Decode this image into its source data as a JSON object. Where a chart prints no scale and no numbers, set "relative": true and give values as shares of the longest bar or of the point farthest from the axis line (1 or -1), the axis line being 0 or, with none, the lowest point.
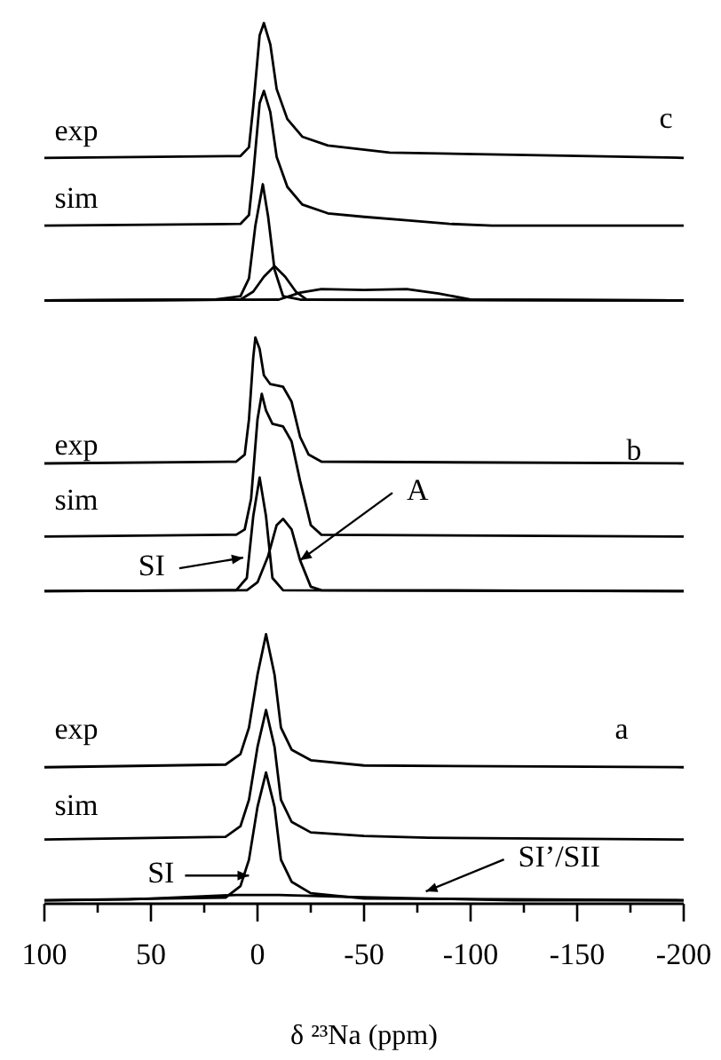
{
  "chart_data": {
    "type": "line",
    "relative": true,
    "xlabel": "δ ²³Na (ppm)",
    "xlim": [
      100,
      -200
    ],
    "xticks": [
      100,
      {
        "value": 75,
        "label": null
      },
      50,
      {
        "value": 25,
        "label": null
      },
      0,
      {
        "value": -25,
        "label": null
      },
      -50,
      {
        "value": -75,
        "label": null
      },
      -100,
      {
        "value": -125,
        "label": null
      },
      -150,
      {
        "value": -175,
        "label": null
      },
      -200
    ],
    "tick_labels": "x",
    "marker": "none",
    "line_style": "solid",
    "series": [
      {
        "color": "#000000",
        "x": [
          100,
          8,
          4,
          2,
          -1,
          -3,
          -6,
          -9,
          -14,
          -21,
          -33,
          -62,
          -200
        ],
        "values": [
          0.847,
          0.849,
          0.859,
          0.905,
          0.986,
          1.0,
          0.976,
          0.925,
          0.891,
          0.871,
          0.861,
          0.853,
          0.847
        ]
      },
      {
        "color": "#000000",
        "x": [
          100,
          8,
          4,
          2,
          -1,
          -3,
          -6,
          -9,
          -14,
          -21,
          -33,
          -50,
          -70,
          -90,
          -110,
          -200
        ],
        "values": [
          0.77,
          0.772,
          0.782,
          0.828,
          0.909,
          0.923,
          0.899,
          0.848,
          0.814,
          0.794,
          0.784,
          0.78,
          0.776,
          0.772,
          0.77,
          0.77
        ]
      },
      {
        "color": "#000000",
        "x": [
          100,
          20,
          8,
          4,
          1,
          -2.5,
          -5,
          -8,
          -12,
          -20,
          -200
        ],
        "values": [
          0.685,
          0.686,
          0.69,
          0.71,
          0.77,
          0.817,
          0.78,
          0.72,
          0.69,
          0.686,
          0.685
        ]
      },
      {
        "color": "#000000",
        "x": [
          100,
          8,
          2,
          -3,
          -8,
          -13,
          -18,
          -23,
          -200
        ],
        "values": [
          0.685,
          0.686,
          0.695,
          0.712,
          0.724,
          0.712,
          0.695,
          0.686,
          0.685
        ]
      },
      {
        "color": "#000000",
        "x": [
          100,
          -10,
          -20,
          -30,
          -50,
          -70,
          -85,
          -100,
          -200
        ],
        "values": [
          0.685,
          0.686,
          0.694,
          0.698,
          0.697,
          0.698,
          0.693,
          0.686,
          0.685
        ]
      },
      {
        "color": "#000000",
        "x": [
          100,
          10,
          6,
          4,
          2,
          1,
          -1,
          -3,
          -6,
          -12,
          -16,
          -20,
          -24,
          -30,
          -200
        ],
        "values": [
          0.5,
          0.502,
          0.51,
          0.55,
          0.62,
          0.643,
          0.63,
          0.6,
          0.59,
          0.587,
          0.57,
          0.53,
          0.51,
          0.502,
          0.5
        ]
      },
      {
        "color": "#000000",
        "x": [
          100,
          10,
          6,
          3,
          0,
          -2,
          -4,
          -7,
          -12,
          -16,
          -20,
          -25,
          -30,
          -200
        ],
        "values": [
          0.417,
          0.419,
          0.425,
          0.46,
          0.55,
          0.579,
          0.56,
          0.545,
          0.542,
          0.525,
          0.48,
          0.43,
          0.419,
          0.417
        ]
      },
      {
        "color": "#000000",
        "x": [
          100,
          10,
          5,
          2,
          -1,
          -4,
          -7,
          -12,
          -200
        ],
        "values": [
          0.355,
          0.356,
          0.37,
          0.44,
          0.484,
          0.44,
          0.37,
          0.356,
          0.355
        ]
      },
      {
        "color": "#000000",
        "x": [
          100,
          5,
          0,
          -5,
          -9,
          -12,
          -16,
          -20,
          -25,
          -30,
          -200
        ],
        "values": [
          0.355,
          0.356,
          0.365,
          0.395,
          0.43,
          0.437,
          0.425,
          0.39,
          0.36,
          0.356,
          0.355
        ]
      },
      {
        "color": "#000000",
        "x": [
          100,
          15,
          8,
          4,
          0,
          -4,
          -8,
          -11,
          -16,
          -25,
          -50,
          -200
        ],
        "values": [
          0.155,
          0.158,
          0.17,
          0.2,
          0.26,
          0.306,
          0.26,
          0.2,
          0.175,
          0.163,
          0.157,
          0.155
        ]
      },
      {
        "color": "#000000",
        "x": [
          100,
          15,
          8,
          4,
          0,
          -4,
          -8,
          -11,
          -16,
          -25,
          -50,
          -80,
          -200
        ],
        "values": [
          0.073,
          0.076,
          0.088,
          0.118,
          0.178,
          0.22,
          0.178,
          0.118,
          0.093,
          0.081,
          0.077,
          0.075,
          0.073
        ]
      },
      {
        "color": "#000000",
        "x": [
          100,
          15,
          8,
          4,
          0,
          -4,
          -8,
          -11,
          -16,
          -25,
          -50,
          -200
        ],
        "values": [
          0.004,
          0.007,
          0.02,
          0.05,
          0.11,
          0.149,
          0.11,
          0.05,
          0.025,
          0.012,
          0.006,
          0.004
        ]
      },
      {
        "color": "#000000",
        "x": [
          100,
          60,
          40,
          10,
          -10,
          -40,
          -80,
          -120,
          -200
        ],
        "values": [
          0.004,
          0.005,
          0.007,
          0.01,
          0.01,
          0.008,
          0.006,
          0.004,
          0.004
        ]
      }
    ],
    "annotations": [
      "exp",
      "c",
      "sim",
      "exp",
      "b",
      "sim",
      {
        "text": "SI",
        "x": 6.7,
        "y": 0.393
      },
      {
        "text": "A",
        "x": -20,
        "y": 0.39
      },
      "exp",
      "a",
      "sim",
      {
        "text": "SI",
        "x": 4,
        "y": 0.032
      },
      {
        "text": "SI’/SII",
        "x": -79,
        "y": 0.014
      }
    ]
  }
}
